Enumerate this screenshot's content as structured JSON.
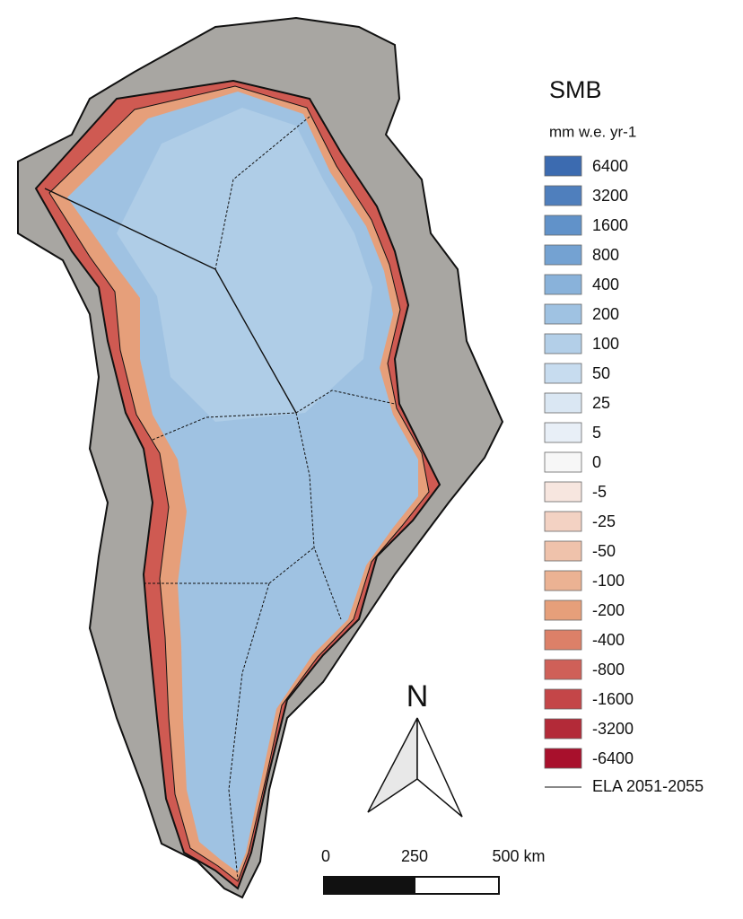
{
  "legend": {
    "title": "SMB",
    "unit": "mm w.e. yr-1",
    "items": [
      {
        "label": 6400,
        "color": "#3c6bb0"
      },
      {
        "label": 3200,
        "color": "#4f7fbd"
      },
      {
        "label": 1600,
        "color": "#6192c9"
      },
      {
        "label": 800,
        "color": "#74a2d2"
      },
      {
        "label": 400,
        "color": "#89b2da"
      },
      {
        "label": 200,
        "color": "#9fc2e2"
      },
      {
        "label": 100,
        "color": "#b3cfe8"
      },
      {
        "label": 50,
        "color": "#c7dcef"
      },
      {
        "label": 25,
        "color": "#dae7f3"
      },
      {
        "label": 5,
        "color": "#e8eff7"
      },
      {
        "label": 0,
        "color": "#f7f7f7"
      },
      {
        "label": -5,
        "color": "#f7e6df"
      },
      {
        "label": -25,
        "color": "#f3d2c3"
      },
      {
        "label": -50,
        "color": "#efc2ab"
      },
      {
        "label": -100,
        "color": "#ebb293"
      },
      {
        "label": -200,
        "color": "#e69f7a"
      },
      {
        "label": -400,
        "color": "#dc8068"
      },
      {
        "label": -800,
        "color": "#cf6058"
      },
      {
        "label": -1600,
        "color": "#c44648"
      },
      {
        "label": -3200,
        "color": "#b32a38"
      },
      {
        "label": -6400,
        "color": "#a8102c"
      }
    ],
    "line_label": "ELA 2051-2055"
  },
  "north_arrow": "N",
  "scale_bar": {
    "labels": [
      "0",
      "250",
      "500 km"
    ]
  }
}
